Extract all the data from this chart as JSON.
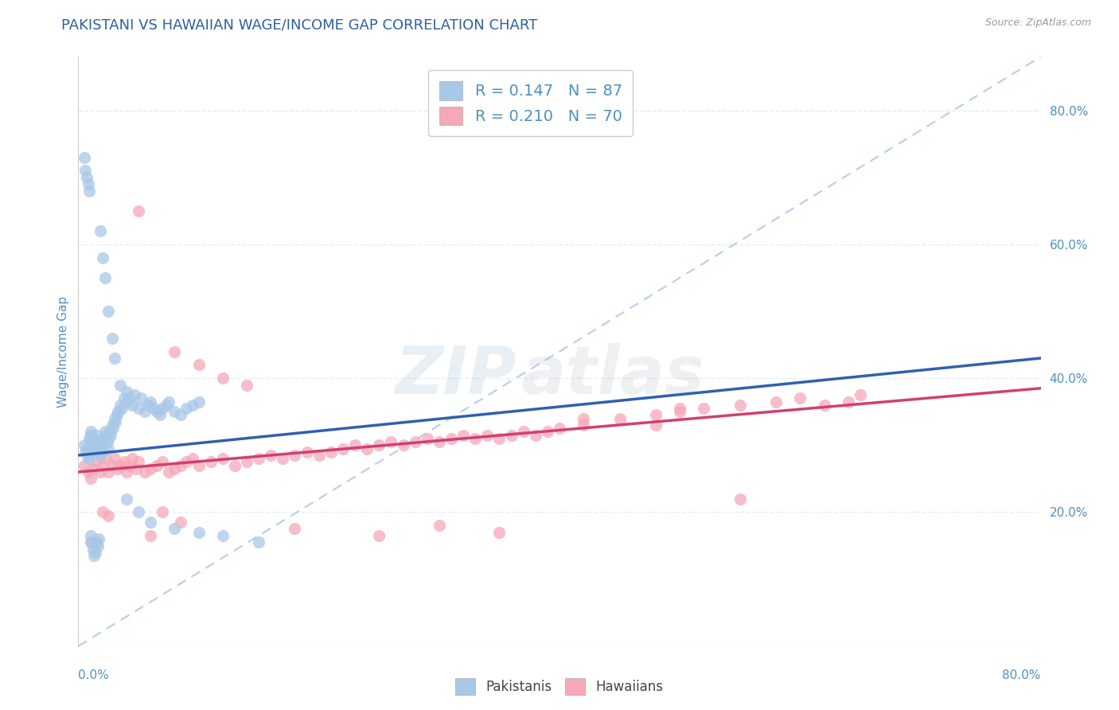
{
  "title": "PAKISTANI VS HAWAIIAN WAGE/INCOME GAP CORRELATION CHART",
  "source": "Source: ZipAtlas.com",
  "ylabel": "Wage/Income Gap",
  "ytick_values": [
    0.2,
    0.4,
    0.6,
    0.8
  ],
  "xmin": 0.0,
  "xmax": 0.8,
  "ymin": 0.0,
  "ymax": 0.88,
  "legend_R1": "R = 0.147",
  "legend_N1": "N = 87",
  "legend_R2": "R = 0.210",
  "legend_N2": "N = 70",
  "pakistani_color": "#a8c8e8",
  "hawaiian_color": "#f5a8b8",
  "trend1_color": "#3060b0",
  "trend2_color": "#d04070",
  "ref_line_color": "#b0c8e8",
  "background_color": "#ffffff",
  "grid_color": "#e0e8f0",
  "title_color": "#3060a0",
  "axis_label_color": "#5090c0",
  "tick_label_color": "#5090c0",
  "pakistani_x": [
    0.005,
    0.006,
    0.007,
    0.008,
    0.008,
    0.009,
    0.01,
    0.01,
    0.011,
    0.012,
    0.012,
    0.013,
    0.013,
    0.014,
    0.015,
    0.015,
    0.016,
    0.017,
    0.018,
    0.019,
    0.02,
    0.02,
    0.021,
    0.022,
    0.023,
    0.024,
    0.025,
    0.025,
    0.026,
    0.027,
    0.028,
    0.029,
    0.03,
    0.031,
    0.032,
    0.033,
    0.035,
    0.036,
    0.038,
    0.04,
    0.041,
    0.043,
    0.045,
    0.047,
    0.05,
    0.052,
    0.055,
    0.058,
    0.06,
    0.063,
    0.065,
    0.068,
    0.07,
    0.073,
    0.075,
    0.08,
    0.085,
    0.09,
    0.095,
    0.1,
    0.005,
    0.006,
    0.007,
    0.008,
    0.009,
    0.01,
    0.011,
    0.012,
    0.013,
    0.014,
    0.015,
    0.016,
    0.017,
    0.018,
    0.02,
    0.022,
    0.025,
    0.028,
    0.03,
    0.035,
    0.04,
    0.05,
    0.06,
    0.08,
    0.1,
    0.12,
    0.15
  ],
  "pakistani_y": [
    0.3,
    0.29,
    0.295,
    0.285,
    0.28,
    0.31,
    0.32,
    0.315,
    0.305,
    0.295,
    0.3,
    0.31,
    0.3,
    0.29,
    0.295,
    0.315,
    0.305,
    0.3,
    0.285,
    0.29,
    0.305,
    0.298,
    0.31,
    0.32,
    0.315,
    0.305,
    0.295,
    0.31,
    0.32,
    0.315,
    0.33,
    0.325,
    0.34,
    0.335,
    0.345,
    0.35,
    0.36,
    0.355,
    0.37,
    0.38,
    0.365,
    0.37,
    0.36,
    0.375,
    0.355,
    0.37,
    0.35,
    0.36,
    0.365,
    0.355,
    0.35,
    0.345,
    0.355,
    0.36,
    0.365,
    0.35,
    0.345,
    0.355,
    0.36,
    0.365,
    0.73,
    0.71,
    0.7,
    0.69,
    0.68,
    0.165,
    0.155,
    0.145,
    0.135,
    0.14,
    0.155,
    0.15,
    0.16,
    0.62,
    0.58,
    0.55,
    0.5,
    0.46,
    0.43,
    0.39,
    0.22,
    0.2,
    0.185,
    0.175,
    0.17,
    0.165,
    0.155
  ],
  "hawaiian_x": [
    0.005,
    0.008,
    0.01,
    0.012,
    0.015,
    0.018,
    0.02,
    0.022,
    0.025,
    0.028,
    0.03,
    0.033,
    0.035,
    0.038,
    0.04,
    0.043,
    0.045,
    0.048,
    0.05,
    0.055,
    0.06,
    0.065,
    0.07,
    0.075,
    0.08,
    0.085,
    0.09,
    0.095,
    0.1,
    0.11,
    0.12,
    0.13,
    0.14,
    0.15,
    0.16,
    0.17,
    0.18,
    0.19,
    0.2,
    0.21,
    0.22,
    0.23,
    0.24,
    0.25,
    0.26,
    0.27,
    0.28,
    0.29,
    0.3,
    0.31,
    0.32,
    0.33,
    0.34,
    0.35,
    0.36,
    0.37,
    0.38,
    0.39,
    0.4,
    0.42,
    0.45,
    0.48,
    0.5,
    0.52,
    0.55,
    0.58,
    0.6,
    0.62,
    0.64,
    0.65
  ],
  "hawaiian_y": [
    0.27,
    0.26,
    0.25,
    0.265,
    0.275,
    0.26,
    0.27,
    0.28,
    0.26,
    0.27,
    0.28,
    0.265,
    0.27,
    0.275,
    0.26,
    0.27,
    0.28,
    0.265,
    0.275,
    0.26,
    0.265,
    0.27,
    0.275,
    0.26,
    0.265,
    0.27,
    0.275,
    0.28,
    0.27,
    0.275,
    0.28,
    0.27,
    0.275,
    0.28,
    0.285,
    0.28,
    0.285,
    0.29,
    0.285,
    0.29,
    0.295,
    0.3,
    0.295,
    0.3,
    0.305,
    0.3,
    0.305,
    0.31,
    0.305,
    0.31,
    0.315,
    0.31,
    0.315,
    0.31,
    0.315,
    0.32,
    0.315,
    0.32,
    0.325,
    0.33,
    0.34,
    0.345,
    0.35,
    0.355,
    0.36,
    0.365,
    0.37,
    0.36,
    0.365,
    0.375
  ],
  "hawaiian_extra_x": [
    0.08,
    0.1,
    0.12,
    0.14,
    0.42,
    0.48,
    0.01,
    0.015,
    0.06,
    0.5,
    0.55,
    0.07,
    0.085,
    0.18,
    0.25,
    0.3,
    0.35,
    0.05,
    0.02,
    0.025
  ],
  "hawaiian_extra_y": [
    0.44,
    0.42,
    0.4,
    0.39,
    0.34,
    0.33,
    0.155,
    0.155,
    0.165,
    0.355,
    0.22,
    0.2,
    0.185,
    0.175,
    0.165,
    0.18,
    0.17,
    0.65,
    0.2,
    0.195
  ],
  "trend1_x_start": 0.0,
  "trend1_x_end": 0.8,
  "trend1_y_start": 0.285,
  "trend1_y_end": 0.43,
  "trend2_x_start": 0.0,
  "trend2_x_end": 0.8,
  "trend2_y_start": 0.26,
  "trend2_y_end": 0.385
}
